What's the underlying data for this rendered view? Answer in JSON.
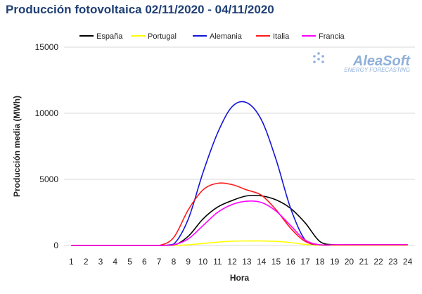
{
  "title": "Producción fotovoltaica 02/11/2020 - 04/11/2020",
  "brand": {
    "name": "AleaSoft",
    "tagline": "ENERGY FORECASTING"
  },
  "chart_data": {
    "type": "line",
    "title": "Producción fotovoltaica 02/11/2020 - 04/11/2020",
    "xlabel": "Hora",
    "ylabel": "Producción media (MWh)",
    "ylim": [
      0,
      15000
    ],
    "yticks": [
      0,
      5000,
      10000,
      15000
    ],
    "grid": "horizontal",
    "legend": "top",
    "x": [
      1,
      2,
      3,
      4,
      5,
      6,
      7,
      8,
      9,
      10,
      11,
      12,
      13,
      14,
      15,
      16,
      17,
      18,
      19,
      20,
      21,
      22,
      23,
      24
    ],
    "series": [
      {
        "name": "España",
        "color": "#000000",
        "values": [
          0,
          0,
          0,
          0,
          0,
          0,
          0,
          0,
          700,
          2000,
          2900,
          3400,
          3750,
          3750,
          3450,
          2800,
          1700,
          300,
          50,
          50,
          50,
          50,
          50,
          50
        ]
      },
      {
        "name": "Portugal",
        "color": "#ffff00",
        "values": [
          0,
          0,
          0,
          0,
          0,
          0,
          0,
          0,
          50,
          150,
          250,
          320,
          340,
          340,
          310,
          220,
          80,
          10,
          0,
          0,
          0,
          0,
          0,
          0
        ]
      },
      {
        "name": "Alemania",
        "color": "#1515d6",
        "values": [
          0,
          0,
          0,
          0,
          0,
          0,
          0,
          100,
          2000,
          5500,
          8500,
          10500,
          10800,
          9500,
          6500,
          2800,
          400,
          50,
          50,
          50,
          50,
          50,
          50,
          50
        ]
      },
      {
        "name": "Italia",
        "color": "#ff1a1a",
        "values": [
          0,
          0,
          0,
          0,
          0,
          0,
          0,
          600,
          2700,
          4200,
          4700,
          4600,
          4200,
          3800,
          2700,
          1300,
          300,
          50,
          50,
          50,
          50,
          50,
          50,
          50
        ]
      },
      {
        "name": "Francia",
        "color": "#ff00ff",
        "values": [
          0,
          0,
          0,
          0,
          0,
          0,
          0,
          50,
          500,
          1500,
          2500,
          3100,
          3350,
          3250,
          2600,
          1500,
          400,
          50,
          50,
          50,
          50,
          50,
          50,
          50
        ]
      }
    ]
  }
}
